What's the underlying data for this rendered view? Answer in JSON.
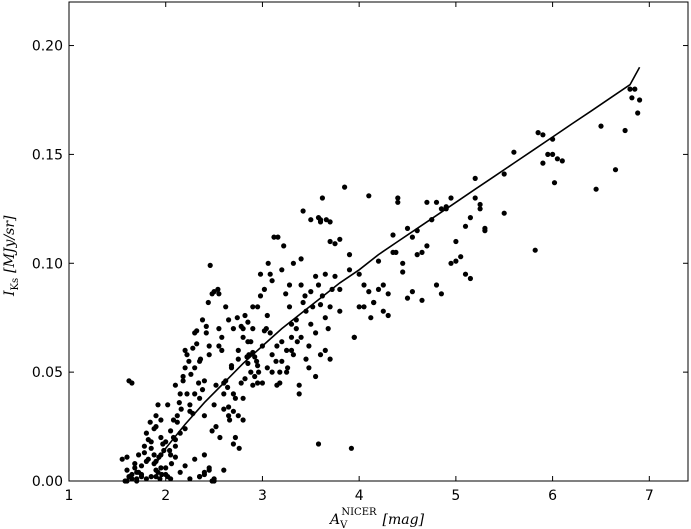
{
  "chart_data": {
    "type": "scatter",
    "xlabel": {
      "main": "A",
      "sub": "V",
      "sup": "NICER",
      "unit": "[mag]"
    },
    "ylabel": {
      "main": "I",
      "sub": "Ks",
      "unit": "[MJy/sr]"
    },
    "xlim": [
      1,
      7.4
    ],
    "ylim": [
      0,
      0.22
    ],
    "x_ticks": [
      "1",
      "2",
      "3",
      "4",
      "5",
      "6",
      "7"
    ],
    "y_ticks": [
      "0.00",
      "0.05",
      "0.10",
      "0.15",
      "0.20"
    ],
    "grid": false,
    "colors": {
      "points": "#000000",
      "line": "#000000"
    },
    "series": [
      {
        "kind": "points",
        "x": [
          1.55,
          1.6,
          1.6,
          1.62,
          1.65,
          1.68,
          1.7,
          1.72,
          1.75,
          1.78,
          1.8,
          1.82,
          1.85,
          1.88,
          1.9,
          1.9,
          1.92,
          1.95,
          1.95,
          1.98,
          1.6,
          1.65,
          1.7,
          1.75,
          1.8,
          1.85,
          1.9,
          1.95,
          1.58,
          1.62,
          1.68,
          1.72,
          1.78,
          1.82,
          1.88,
          1.93,
          1.97,
          1.65,
          1.75,
          1.85,
          1.9,
          1.92,
          1.94,
          1.96,
          1.88,
          1.84,
          1.7,
          1.8,
          1.9,
          1.95,
          2.0,
          2.02,
          2.05,
          2.08,
          2.1,
          2.12,
          2.15,
          2.18,
          2.2,
          2.22,
          2.25,
          2.28,
          2.3,
          2.32,
          2.35,
          2.38,
          2.4,
          2.42,
          2.45,
          2.48,
          2.0,
          2.05,
          2.1,
          2.15,
          2.2,
          2.25,
          2.3,
          2.35,
          2.4,
          2.45,
          2.02,
          2.06,
          2.12,
          2.16,
          2.22,
          2.26,
          2.32,
          2.36,
          2.42,
          2.46,
          2.04,
          2.1,
          2.18,
          2.24,
          2.3,
          2.38,
          2.44,
          2.08,
          2.14,
          2.2,
          2.28,
          2.34,
          2.4,
          2.48,
          2.0,
          2.1,
          2.2,
          2.3,
          2.4,
          2.25,
          2.35,
          2.45,
          2.15,
          2.05,
          2.5,
          2.52,
          2.55,
          2.58,
          2.6,
          2.62,
          2.65,
          2.68,
          2.7,
          2.72,
          2.75,
          2.78,
          2.8,
          2.82,
          2.85,
          2.88,
          2.9,
          2.92,
          2.95,
          2.98,
          2.5,
          2.55,
          2.6,
          2.65,
          2.7,
          2.75,
          2.8,
          2.85,
          2.9,
          2.95,
          2.52,
          2.58,
          2.62,
          2.68,
          2.72,
          2.78,
          2.82,
          2.88,
          2.92,
          2.98,
          2.54,
          2.6,
          2.66,
          2.74,
          2.8,
          2.86,
          2.94,
          2.56,
          2.64,
          2.7,
          2.76,
          2.84,
          2.9,
          2.96,
          2.5,
          2.6,
          2.7,
          2.8,
          2.9,
          2.55,
          2.65,
          2.75,
          2.85,
          2.95,
          2.45,
          2.48,
          2.5,
          2.4,
          2.35,
          3.0,
          3.02,
          3.05,
          3.08,
          3.1,
          3.12,
          3.15,
          3.18,
          3.2,
          3.22,
          3.25,
          3.28,
          3.3,
          3.32,
          3.35,
          3.38,
          3.4,
          3.42,
          3.45,
          3.48,
          3.0,
          3.05,
          3.1,
          3.15,
          3.2,
          3.25,
          3.3,
          3.35,
          3.4,
          3.45,
          3.02,
          3.08,
          3.14,
          3.2,
          3.26,
          3.32,
          3.38,
          3.44,
          3.04,
          3.1,
          3.18,
          3.24,
          3.3,
          3.36,
          3.42,
          3.48,
          3.06,
          3.16,
          3.28,
          3.4,
          3.5,
          3.52,
          3.55,
          3.58,
          3.6,
          3.62,
          3.65,
          3.68,
          3.7,
          3.72,
          3.75,
          3.8,
          3.85,
          3.9,
          3.95,
          3.5,
          3.55,
          3.6,
          3.65,
          3.7,
          3.75,
          3.8,
          3.58,
          3.62,
          3.66,
          3.7,
          3.55,
          3.6,
          3.65,
          3.5,
          3.6,
          3.7,
          3.8,
          3.9,
          3.95,
          3.58,
          3.92,
          4.0,
          4.05,
          4.1,
          4.15,
          4.2,
          4.25,
          4.3,
          4.35,
          4.4,
          4.45,
          4.5,
          4.55,
          4.6,
          4.65,
          4.7,
          4.75,
          4.8,
          4.85,
          4.9,
          4.95,
          4.0,
          4.1,
          4.2,
          4.3,
          4.4,
          4.5,
          4.6,
          4.7,
          4.8,
          4.9,
          4.05,
          4.15,
          4.25,
          4.35,
          4.45,
          4.55,
          4.65,
          4.75,
          4.85,
          4.95,
          4.12,
          4.38,
          5.0,
          5.05,
          5.1,
          5.15,
          5.2,
          5.25,
          5.3,
          5.5,
          5.6,
          5.0,
          5.1,
          5.2,
          5.3,
          5.15,
          5.25,
          5.5,
          5.82,
          5.85,
          5.9,
          5.95,
          6.0,
          6.02,
          6.05,
          6.1,
          6.0,
          5.9,
          6.45,
          6.5,
          6.65,
          6.75,
          6.8,
          6.82,
          6.85,
          6.88,
          6.9
        ],
        "y": [
          0.01,
          0.005,
          0.011,
          0.046,
          0.045,
          0.008,
          0.004,
          0.012,
          0.002,
          0.016,
          0.022,
          0.01,
          0.018,
          0.012,
          0.005,
          0.03,
          0.035,
          0.006,
          0.02,
          0.014,
          0.0,
          0.003,
          0.001,
          0.007,
          0.009,
          0.015,
          0.025,
          0.028,
          0.0,
          0.002,
          0.006,
          0.004,
          0.013,
          0.019,
          0.008,
          0.011,
          0.017,
          0.001,
          0.003,
          0.002,
          0.009,
          0.004,
          0.001,
          0.003,
          0.024,
          0.027,
          0.0,
          0.001,
          0.002,
          0.012,
          0.018,
          0.035,
          0.023,
          0.028,
          0.044,
          0.03,
          0.04,
          0.048,
          0.052,
          0.058,
          0.035,
          0.061,
          0.04,
          0.069,
          0.055,
          0.042,
          0.046,
          0.071,
          0.062,
          0.086,
          0.006,
          0.012,
          0.016,
          0.022,
          0.024,
          0.032,
          0.052,
          0.038,
          0.03,
          0.058,
          0.002,
          0.008,
          0.027,
          0.033,
          0.04,
          0.049,
          0.063,
          0.056,
          0.068,
          0.099,
          0.014,
          0.019,
          0.046,
          0.055,
          0.068,
          0.074,
          0.082,
          0.02,
          0.036,
          0.06,
          0.031,
          0.045,
          0.012,
          0.023,
          0.003,
          0.011,
          0.007,
          0.01,
          0.003,
          0.001,
          0.002,
          0.005,
          0.004,
          0.001,
          0.087,
          0.044,
          0.062,
          0.06,
          0.045,
          0.08,
          0.074,
          0.052,
          0.07,
          0.038,
          0.056,
          0.045,
          0.066,
          0.076,
          0.054,
          0.05,
          0.044,
          0.048,
          0.053,
          0.095,
          0.035,
          0.07,
          0.033,
          0.03,
          0.04,
          0.06,
          0.038,
          0.073,
          0.059,
          0.08,
          0.025,
          0.066,
          0.046,
          0.053,
          0.02,
          0.071,
          0.047,
          0.064,
          0.057,
          0.085,
          0.088,
          0.04,
          0.028,
          0.075,
          0.07,
          0.058,
          0.055,
          0.02,
          0.043,
          0.032,
          0.015,
          0.057,
          0.08,
          0.05,
          0.0,
          0.005,
          0.017,
          0.028,
          0.07,
          0.086,
          0.034,
          0.03,
          0.064,
          0.045,
          0.006,
          0.0,
          0.001,
          0.004,
          0.002,
          0.062,
          0.088,
          0.052,
          0.068,
          0.058,
          0.112,
          0.044,
          0.05,
          0.097,
          0.108,
          0.06,
          0.08,
          0.066,
          0.1,
          0.07,
          0.04,
          0.102,
          0.082,
          0.056,
          0.062,
          0.045,
          0.076,
          0.092,
          0.062,
          0.055,
          0.05,
          0.072,
          0.074,
          0.066,
          0.078,
          0.069,
          0.095,
          0.055,
          0.064,
          0.052,
          0.058,
          0.044,
          0.085,
          0.07,
          0.05,
          0.045,
          0.086,
          0.06,
          0.064,
          0.124,
          0.052,
          0.1,
          0.112,
          0.09,
          0.09,
          0.12,
          0.08,
          0.068,
          0.09,
          0.12,
          0.13,
          0.095,
          0.07,
          0.11,
          0.088,
          0.109,
          0.088,
          0.135,
          0.104,
          0.066,
          0.072,
          0.094,
          0.081,
          0.075,
          0.119,
          0.094,
          0.111,
          0.121,
          0.085,
          0.12,
          0.056,
          0.048,
          0.058,
          0.06,
          0.087,
          0.119,
          0.08,
          0.078,
          0.097,
          0.066,
          0.017,
          0.015,
          0.08,
          0.09,
          0.131,
          0.082,
          0.088,
          0.078,
          0.086,
          0.105,
          0.13,
          0.096,
          0.084,
          0.112,
          0.104,
          0.083,
          0.128,
          0.12,
          0.09,
          0.125,
          0.126,
          0.13,
          0.095,
          0.087,
          0.101,
          0.076,
          0.128,
          0.116,
          0.115,
          0.108,
          0.128,
          0.125,
          0.08,
          0.082,
          0.09,
          0.113,
          0.1,
          0.087,
          0.105,
          0.12,
          0.086,
          0.1,
          0.075,
          0.105,
          0.101,
          0.103,
          0.117,
          0.093,
          0.139,
          0.127,
          0.116,
          0.141,
          0.151,
          0.11,
          0.095,
          0.13,
          0.115,
          0.121,
          0.125,
          0.123,
          0.106,
          0.16,
          0.146,
          0.15,
          0.157,
          0.137,
          0.148,
          0.147,
          0.15,
          0.159,
          0.134,
          0.163,
          0.143,
          0.161,
          0.18,
          0.176,
          0.18,
          0.169,
          0.175
        ]
      },
      {
        "kind": "line",
        "x": [
          1.9,
          2.0,
          2.2,
          2.4,
          2.6,
          2.8,
          3.0,
          3.2,
          3.4,
          3.6,
          3.8,
          4.0,
          4.2,
          4.4,
          4.6,
          4.8,
          5.0,
          5.2,
          5.4,
          5.6,
          5.8,
          6.0,
          6.2,
          6.4,
          6.6,
          6.8,
          6.9
        ],
        "y": [
          0.008,
          0.015,
          0.026,
          0.036,
          0.045,
          0.054,
          0.062,
          0.07,
          0.077,
          0.084,
          0.091,
          0.097,
          0.104,
          0.11,
          0.116,
          0.122,
          0.128,
          0.134,
          0.14,
          0.146,
          0.152,
          0.158,
          0.164,
          0.17,
          0.176,
          0.182,
          0.19
        ]
      }
    ]
  }
}
